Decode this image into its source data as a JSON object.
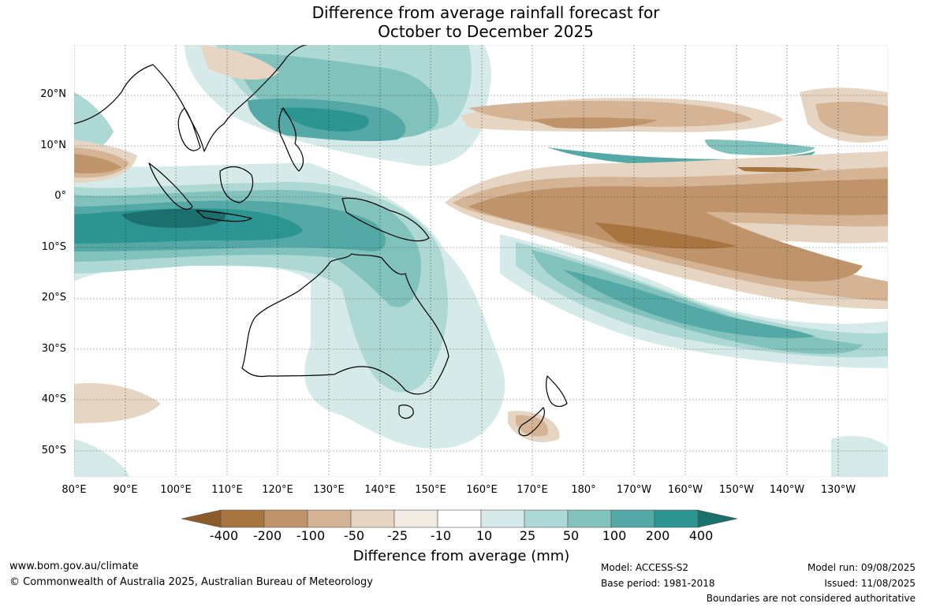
{
  "title_line1": "Difference from average rainfall forecast for",
  "title_line2": "October to December 2025",
  "lat_labels": [
    "20°N",
    "10°N",
    "0°",
    "10°S",
    "20°S",
    "30°S",
    "40°S",
    "50°S"
  ],
  "lon_labels": [
    "80°E",
    "90°E",
    "100°E",
    "110°E",
    "120°E",
    "130°E",
    "140°E",
    "150°E",
    "160°E",
    "170°E",
    "180°",
    "170°W",
    "160°W",
    "150°W",
    "140°W",
    "130°W"
  ],
  "legend": {
    "ticks": [
      "-400",
      "-200",
      "-100",
      "-50",
      "-25",
      "-10",
      "10",
      "25",
      "50",
      "100",
      "200",
      "400"
    ],
    "colors": [
      "#8c5a2b",
      "#a8743f",
      "#c0946a",
      "#d4b494",
      "#e6d5c2",
      "#f2ebe4",
      "#ffffff",
      "#d6ebe9",
      "#aed8d4",
      "#82c2bd",
      "#54a9a6",
      "#2c9592",
      "#1b6f6d"
    ],
    "title": "Difference from average (mm)"
  },
  "footer": {
    "website": "www.bom.gov.au/climate",
    "copyright": "© Commonwealth of Australia 2025, Australian Bureau of Meteorology",
    "model": "Model: ACCESS-S2",
    "base_period": "Base period: 1981-2018",
    "model_run": "Model run: 09/08/2025",
    "issued": "Issued: 11/08/2025",
    "disclaimer": "Boundaries are not considered authoritative"
  }
}
